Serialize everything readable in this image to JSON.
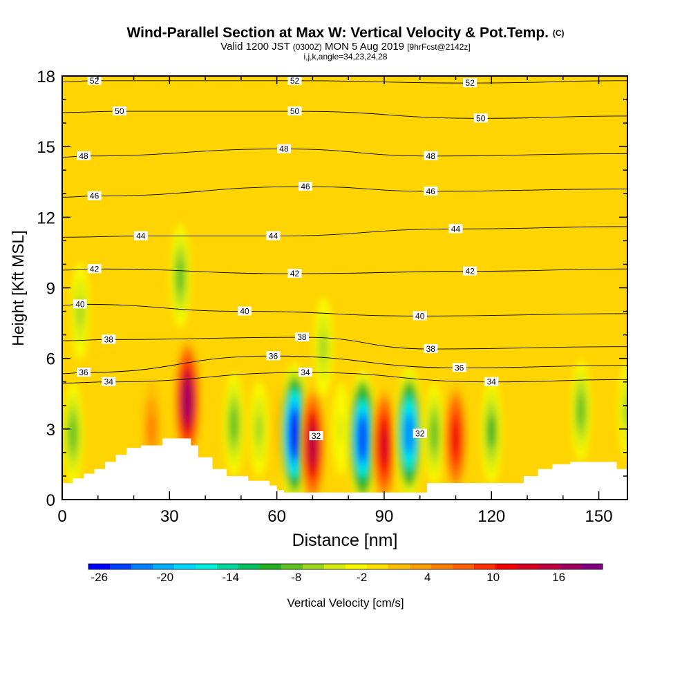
{
  "header": {
    "title_main": "Wind-Parallel Section at Max W: Vertical Velocity & Pot.Temp.",
    "title_mark": "(C)",
    "valid_prefix": "Valid 1200 JST",
    "valid_z": "(0300Z)",
    "valid_date": "MON 5 Aug 2019",
    "forecast": "[9hrFcst@2142z]",
    "indices": "i,j,k,angle=34,23,24,28"
  },
  "chart_data": {
    "type": "heatmap",
    "xlabel": "Distance [nm]",
    "ylabel": "Height [Kft MSL]",
    "xlim": [
      0,
      158
    ],
    "ylim": [
      0,
      18
    ],
    "x_ticks": [
      0,
      30,
      60,
      90,
      120,
      150
    ],
    "y_ticks": [
      0,
      3,
      6,
      9,
      12,
      15,
      18
    ],
    "grid": false,
    "fill_variable": "Vertical Velocity [cm/s]",
    "colorbar": {
      "title": "Vertical Velocity [cm/s]",
      "min": -27,
      "max": 20,
      "tick_labels": [
        -26,
        -20,
        -14,
        -8,
        -2,
        4,
        10,
        16
      ],
      "colors": [
        "#0000ff",
        "#0040ff",
        "#0080ff",
        "#00b0ff",
        "#00d8ff",
        "#00f0e0",
        "#00d8a0",
        "#00c060",
        "#20b020",
        "#60c020",
        "#a0d820",
        "#d8ec10",
        "#f8f800",
        "#ffe000",
        "#ffc000",
        "#ffa000",
        "#ff8000",
        "#ff6000",
        "#ff3000",
        "#f00000",
        "#d80020",
        "#c00040",
        "#a00060",
        "#800080"
      ]
    },
    "velocity_cells": [
      {
        "x": 3,
        "y": 2.8,
        "w": -9
      },
      {
        "x": 5,
        "y": 8.0,
        "w": -6
      },
      {
        "x": 25,
        "y": 3.0,
        "w": 6
      },
      {
        "x": 33,
        "y": 9.5,
        "w": -9
      },
      {
        "x": 35,
        "y": 4.2,
        "w": 18
      },
      {
        "x": 48,
        "y": 3.2,
        "w": -9
      },
      {
        "x": 55,
        "y": 3.0,
        "w": -6
      },
      {
        "x": 62,
        "y": 3.0,
        "w": 4
      },
      {
        "x": 65,
        "y": 2.8,
        "w": -26
      },
      {
        "x": 70,
        "y": 2.3,
        "w": 16
      },
      {
        "x": 73,
        "y": 6.5,
        "w": -7
      },
      {
        "x": 78,
        "y": 3.0,
        "w": -4
      },
      {
        "x": 84,
        "y": 2.6,
        "w": -24
      },
      {
        "x": 90,
        "y": 2.3,
        "w": 14
      },
      {
        "x": 97,
        "y": 2.8,
        "w": -22
      },
      {
        "x": 104,
        "y": 2.8,
        "w": -8
      },
      {
        "x": 110,
        "y": 2.6,
        "w": 12
      },
      {
        "x": 120,
        "y": 2.9,
        "w": -10
      },
      {
        "x": 145,
        "y": 3.8,
        "w": -8
      },
      {
        "x": 158,
        "y": 3.8,
        "w": -6
      }
    ],
    "terrain": [
      {
        "x": 0,
        "h": 0.7
      },
      {
        "x": 3,
        "h": 0.9
      },
      {
        "x": 6,
        "h": 1.1
      },
      {
        "x": 9,
        "h": 1.3
      },
      {
        "x": 12,
        "h": 1.6
      },
      {
        "x": 15,
        "h": 1.9
      },
      {
        "x": 18,
        "h": 2.2
      },
      {
        "x": 22,
        "h": 2.3
      },
      {
        "x": 28,
        "h": 2.6
      },
      {
        "x": 34,
        "h": 2.6
      },
      {
        "x": 36,
        "h": 2.3
      },
      {
        "x": 38,
        "h": 1.8
      },
      {
        "x": 42,
        "h": 1.3
      },
      {
        "x": 46,
        "h": 1.0
      },
      {
        "x": 52,
        "h": 0.8
      },
      {
        "x": 58,
        "h": 0.6
      },
      {
        "x": 60,
        "h": 0.4
      },
      {
        "x": 62,
        "h": 0.3
      },
      {
        "x": 100,
        "h": 0.3
      },
      {
        "x": 102,
        "h": 0.7
      },
      {
        "x": 125,
        "h": 0.7
      },
      {
        "x": 129,
        "h": 1.0
      },
      {
        "x": 133,
        "h": 1.3
      },
      {
        "x": 137,
        "h": 1.5
      },
      {
        "x": 142,
        "h": 1.6
      },
      {
        "x": 152,
        "h": 1.6
      },
      {
        "x": 155,
        "h": 1.3
      },
      {
        "x": 158,
        "h": 1.3
      }
    ],
    "theta_labels": [
      {
        "value": 52,
        "x": 9,
        "y": 17.8
      },
      {
        "value": 52,
        "x": 65,
        "y": 17.8
      },
      {
        "value": 52,
        "x": 114,
        "y": 17.7
      },
      {
        "value": 50,
        "x": 16,
        "y": 16.5
      },
      {
        "value": 50,
        "x": 65,
        "y": 16.5
      },
      {
        "value": 50,
        "x": 117,
        "y": 16.2
      },
      {
        "value": 48,
        "x": 6,
        "y": 14.6
      },
      {
        "value": 48,
        "x": 62,
        "y": 14.9
      },
      {
        "value": 48,
        "x": 103,
        "y": 14.6
      },
      {
        "value": 46,
        "x": 9,
        "y": 12.9
      },
      {
        "value": 46,
        "x": 68,
        "y": 13.3
      },
      {
        "value": 46,
        "x": 103,
        "y": 13.1
      },
      {
        "value": 44,
        "x": 22,
        "y": 11.2
      },
      {
        "value": 44,
        "x": 59,
        "y": 11.2
      },
      {
        "value": 44,
        "x": 110,
        "y": 11.5
      },
      {
        "value": 42,
        "x": 9,
        "y": 9.8
      },
      {
        "value": 42,
        "x": 65,
        "y": 9.6
      },
      {
        "value": 42,
        "x": 114,
        "y": 9.7
      },
      {
        "value": 40,
        "x": 5,
        "y": 8.3
      },
      {
        "value": 40,
        "x": 51,
        "y": 8.0
      },
      {
        "value": 40,
        "x": 100,
        "y": 7.8
      },
      {
        "value": 38,
        "x": 13,
        "y": 6.8
      },
      {
        "value": 38,
        "x": 67,
        "y": 6.9
      },
      {
        "value": 38,
        "x": 103,
        "y": 6.4
      },
      {
        "value": 36,
        "x": 6,
        "y": 5.4
      },
      {
        "value": 36,
        "x": 59,
        "y": 6.1
      },
      {
        "value": 36,
        "x": 111,
        "y": 5.6
      },
      {
        "value": 34,
        "x": 13,
        "y": 5.0
      },
      {
        "value": 34,
        "x": 68,
        "y": 5.4
      },
      {
        "value": 34,
        "x": 120,
        "y": 5.0
      },
      {
        "value": 32,
        "x": 71,
        "y": 2.7
      },
      {
        "value": 32,
        "x": 100,
        "y": 2.8
      }
    ]
  }
}
